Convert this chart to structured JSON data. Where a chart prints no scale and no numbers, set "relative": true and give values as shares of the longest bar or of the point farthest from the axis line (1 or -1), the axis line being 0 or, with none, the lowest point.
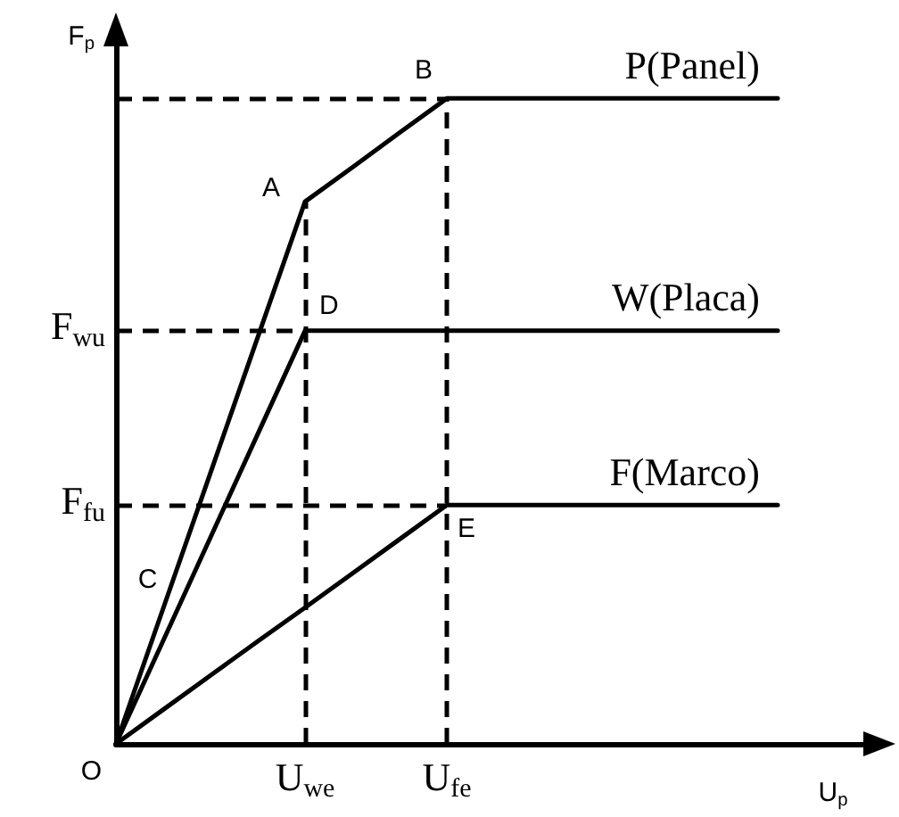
{
  "chart_data": {
    "type": "line",
    "relative": true,
    "xlabel": "U$_{p}$",
    "ylabel": "F$_{p}$",
    "categories": [
      null,
      null,
      null,
      null,
      "U$_{we}$",
      null,
      null,
      "U$_{fe}$",
      null,
      null,
      null,
      null,
      null,
      null,
      null,
      null,
      null
    ],
    "series": [
      {
        "name": "P(Panel)",
        "color": "#000000",
        "values": [
          0,
          0.21,
          0.42,
          0.63,
          0.84,
          0.893,
          0.947,
          1,
          1,
          1,
          1,
          1,
          1,
          1,
          1,
          null,
          null
        ]
      },
      {
        "name": "W(Placa)",
        "color": "#000000",
        "values": [
          0,
          0.16,
          0.32,
          0.48,
          0.64,
          0.64,
          0.64,
          0.64,
          0.64,
          0.64,
          0.64,
          0.64,
          0.64,
          0.64,
          0.64,
          null,
          null
        ]
      },
      {
        "name": "F(Marco)",
        "color": "#000000",
        "values": [
          0,
          0.053,
          0.106,
          0.159,
          0.211,
          0.264,
          0.317,
          0.37,
          0.37,
          0.37,
          0.37,
          0.37,
          0.37,
          0.37,
          0.37,
          null,
          null
        ]
      }
    ],
    "ref_lines": [
      {
        "axis": "y",
        "value": 1,
        "label": null,
        "color": "#000000",
        "line_style": "dashed"
      },
      {
        "axis": "y",
        "value": 0.64,
        "label": "F$_{wu}$",
        "color": "#000000",
        "line_style": "dashed"
      },
      {
        "axis": "y",
        "value": 0.37,
        "label": "F$_{fu}$",
        "color": "#000000",
        "line_style": "dashed"
      },
      {
        "axis": "x",
        "value": "U$_{we}$",
        "label": null,
        "color": "#000000",
        "line_style": "dashed"
      },
      {
        "axis": "x",
        "value": "U$_{fe}$",
        "label": null,
        "color": "#000000",
        "line_style": "dashed"
      }
    ],
    "annotations": [
      "O",
      "C",
      {
        "text": "A",
        "x": "U$_{we}$",
        "y": 0.84
      },
      {
        "text": "D",
        "x": "U$_{we}$",
        "y": 0.64
      },
      {
        "text": "B",
        "x": "U$_{fe}$",
        "y": 1
      },
      {
        "text": "E",
        "x": "U$_{fe}$",
        "y": 0.37
      }
    ],
    "marker": "none",
    "line_style": "solid",
    "grid": false,
    "legend": false,
    "tick_labels": "x"
  }
}
